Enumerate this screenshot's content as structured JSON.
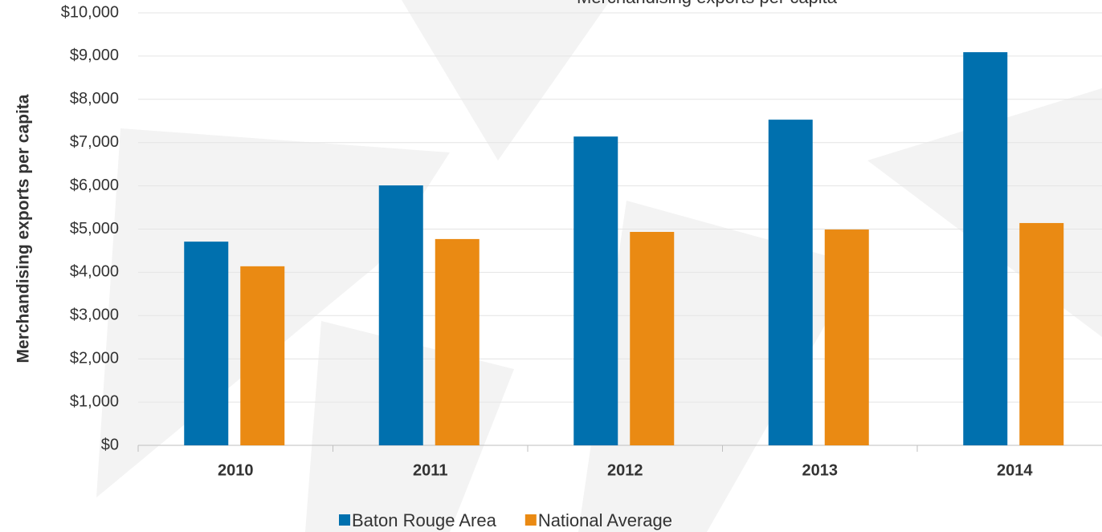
{
  "chart_data": {
    "type": "bar",
    "title": "Merchandising exports per capita",
    "y_label": "Merchandising exports per capita",
    "categories": [
      "2010",
      "2011",
      "2012",
      "2013",
      "2014"
    ],
    "series": [
      {
        "name": "Baton Rouge Area",
        "color": "#0070ae",
        "values": [
          4710,
          6010,
          7140,
          7530,
          9090
        ]
      },
      {
        "name": "National Average",
        "color": "#ea8a13",
        "values": [
          4140,
          4770,
          4935,
          4990,
          5140
        ]
      }
    ],
    "ylim": [
      0,
      10000
    ],
    "yticks": [
      {
        "value": 0,
        "label": "$0"
      },
      {
        "value": 1000,
        "label": "$1,000"
      },
      {
        "value": 2000,
        "label": "$2,000"
      },
      {
        "value": 3000,
        "label": "$3,000"
      },
      {
        "value": 4000,
        "label": "$4,000"
      },
      {
        "value": 5000,
        "label": "$5,000"
      },
      {
        "value": 6000,
        "label": "$6,000"
      },
      {
        "value": 7000,
        "label": "$7,000"
      },
      {
        "value": 8000,
        "label": "$8,000"
      },
      {
        "value": 9000,
        "label": "$9,000"
      },
      {
        "value": 10000,
        "label": "$10,000"
      }
    ],
    "grid": true,
    "legend": "bottom"
  }
}
